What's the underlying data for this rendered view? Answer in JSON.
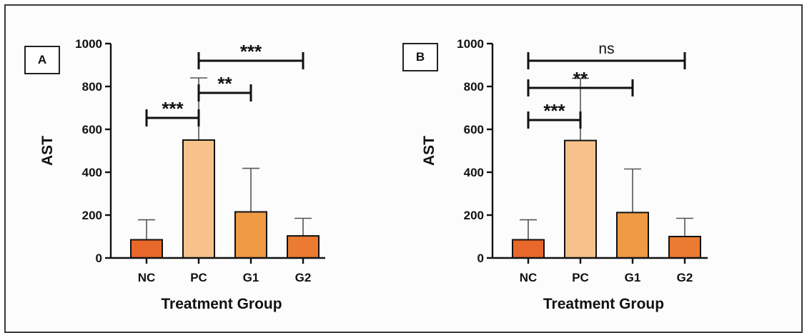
{
  "colors": {
    "NC": "#e8682b",
    "PC": "#f6c18a",
    "G1": "#ef9a44",
    "G2": "#ea7b30",
    "axis": "#111111",
    "bar_outline": "#111111"
  },
  "chart_data": [
    {
      "type": "bar",
      "panel_label": "A",
      "categories": [
        "NC",
        "PC",
        "G1",
        "G2"
      ],
      "values": [
        85,
        550,
        215,
        103
      ],
      "error_upper": [
        178,
        840,
        418,
        185
      ],
      "ylabel": "AST",
      "xlabel": "Treatment Group",
      "ylim": [
        0,
        1000
      ],
      "yticks": [
        "0",
        "200",
        "400",
        "600",
        "800",
        "1000"
      ],
      "grid": false,
      "significance": [
        {
          "from": "NC",
          "to": "PC",
          "label": "***"
        },
        {
          "from": "PC",
          "to": "G1",
          "label": "**"
        },
        {
          "from": "PC",
          "to": "G2",
          "label": "***"
        }
      ]
    },
    {
      "type": "bar",
      "panel_label": "B",
      "categories": [
        "NC",
        "PC",
        "G1",
        "G2"
      ],
      "values": [
        85,
        548,
        212,
        100
      ],
      "error_upper": [
        178,
        838,
        415,
        185
      ],
      "ylabel": "AST",
      "xlabel": "Treatment Group",
      "ylim": [
        0,
        1000
      ],
      "yticks": [
        "0",
        "200",
        "400",
        "600",
        "800",
        "1000"
      ],
      "grid": false,
      "significance": [
        {
          "from": "NC",
          "to": "PC",
          "label": "***"
        },
        {
          "from": "NC",
          "to": "G1",
          "label": "**"
        },
        {
          "from": "NC",
          "to": "G2",
          "label": "ns"
        }
      ]
    }
  ]
}
